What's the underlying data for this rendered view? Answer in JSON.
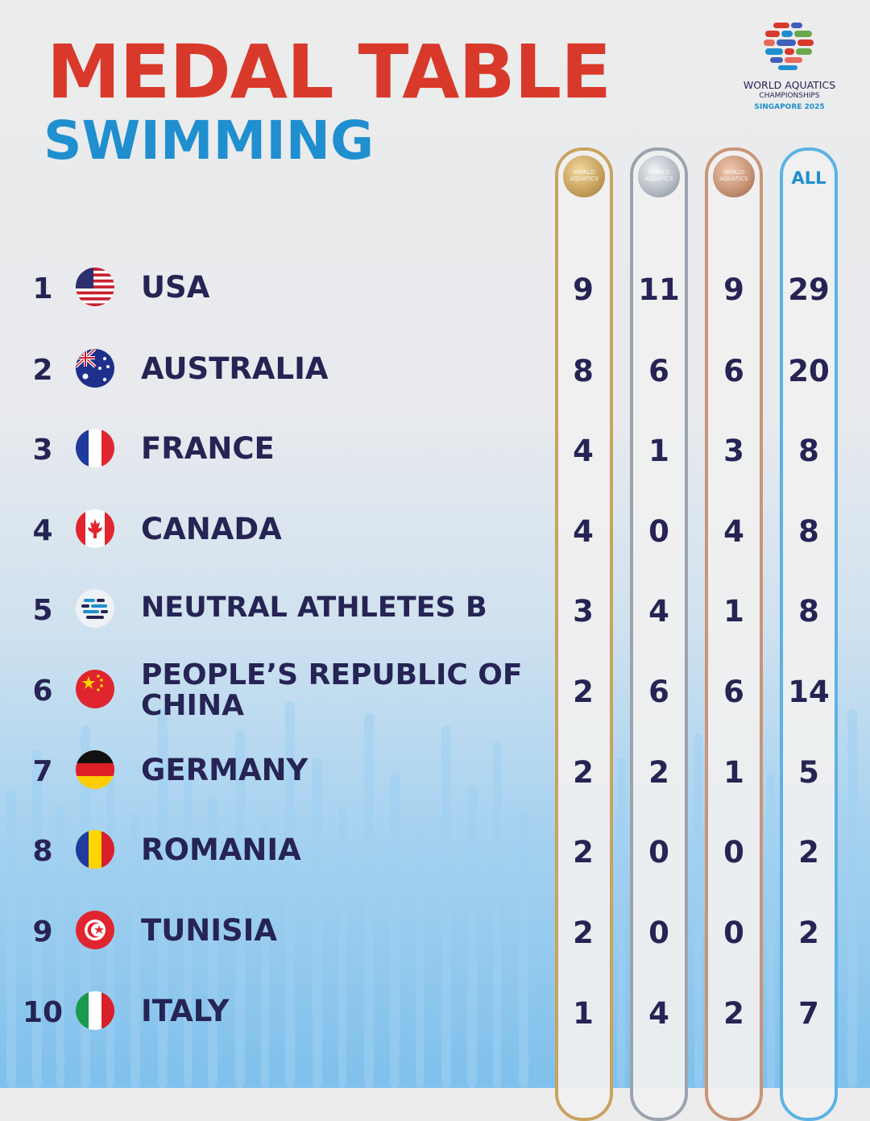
{
  "header": {
    "title": "MEDAL TABLE",
    "subtitle": "SWIMMING"
  },
  "logo": {
    "line1": "WORLD AQUATICS",
    "line2": "CHAMPIONSHIPS",
    "line3": "SINGAPORE 2025"
  },
  "columns": {
    "gold_medal_text": "WORLD AQUATICS",
    "silver_medal_text": "WORLD AQUATICS",
    "bronze_medal_text": "WORLD AQUATICS",
    "all_label": "ALL"
  },
  "colors": {
    "title": "#d8392b",
    "subtitle": "#1f8fcf",
    "text": "#262454",
    "gold": "#c9a35f",
    "silver": "#9aa3ae",
    "bronze": "#c99577",
    "all": "#5cb2e4"
  },
  "rows": [
    {
      "rank": "1",
      "country": "USA",
      "gold": "9",
      "silver": "11",
      "bronze": "9",
      "total": "29",
      "flag": "usa-flag-icon"
    },
    {
      "rank": "2",
      "country": "AUSTRALIA",
      "gold": "8",
      "silver": "6",
      "bronze": "6",
      "total": "20",
      "flag": "australia-flag-icon"
    },
    {
      "rank": "3",
      "country": "FRANCE",
      "gold": "4",
      "silver": "1",
      "bronze": "3",
      "total": "8",
      "flag": "france-flag-icon"
    },
    {
      "rank": "4",
      "country": "CANADA",
      "gold": "4",
      "silver": "0",
      "bronze": "4",
      "total": "8",
      "flag": "canada-flag-icon"
    },
    {
      "rank": "5",
      "country": "NEUTRAL ATHLETES B",
      "gold": "3",
      "silver": "4",
      "bronze": "1",
      "total": "8",
      "flag": "neutral-athletes-icon"
    },
    {
      "rank": "6",
      "country": "PEOPLE’S REPUBLIC OF CHINA",
      "gold": "2",
      "silver": "6",
      "bronze": "6",
      "total": "14",
      "flag": "china-flag-icon"
    },
    {
      "rank": "7",
      "country": "GERMANY",
      "gold": "2",
      "silver": "2",
      "bronze": "1",
      "total": "5",
      "flag": "germany-flag-icon"
    },
    {
      "rank": "8",
      "country": "ROMANIA",
      "gold": "2",
      "silver": "0",
      "bronze": "0",
      "total": "2",
      "flag": "romania-flag-icon"
    },
    {
      "rank": "9",
      "country": "TUNISIA",
      "gold": "2",
      "silver": "0",
      "bronze": "0",
      "total": "2",
      "flag": "tunisia-flag-icon"
    },
    {
      "rank": "10",
      "country": "ITALY",
      "gold": "1",
      "silver": "4",
      "bronze": "2",
      "total": "7",
      "flag": "italy-flag-icon"
    }
  ]
}
